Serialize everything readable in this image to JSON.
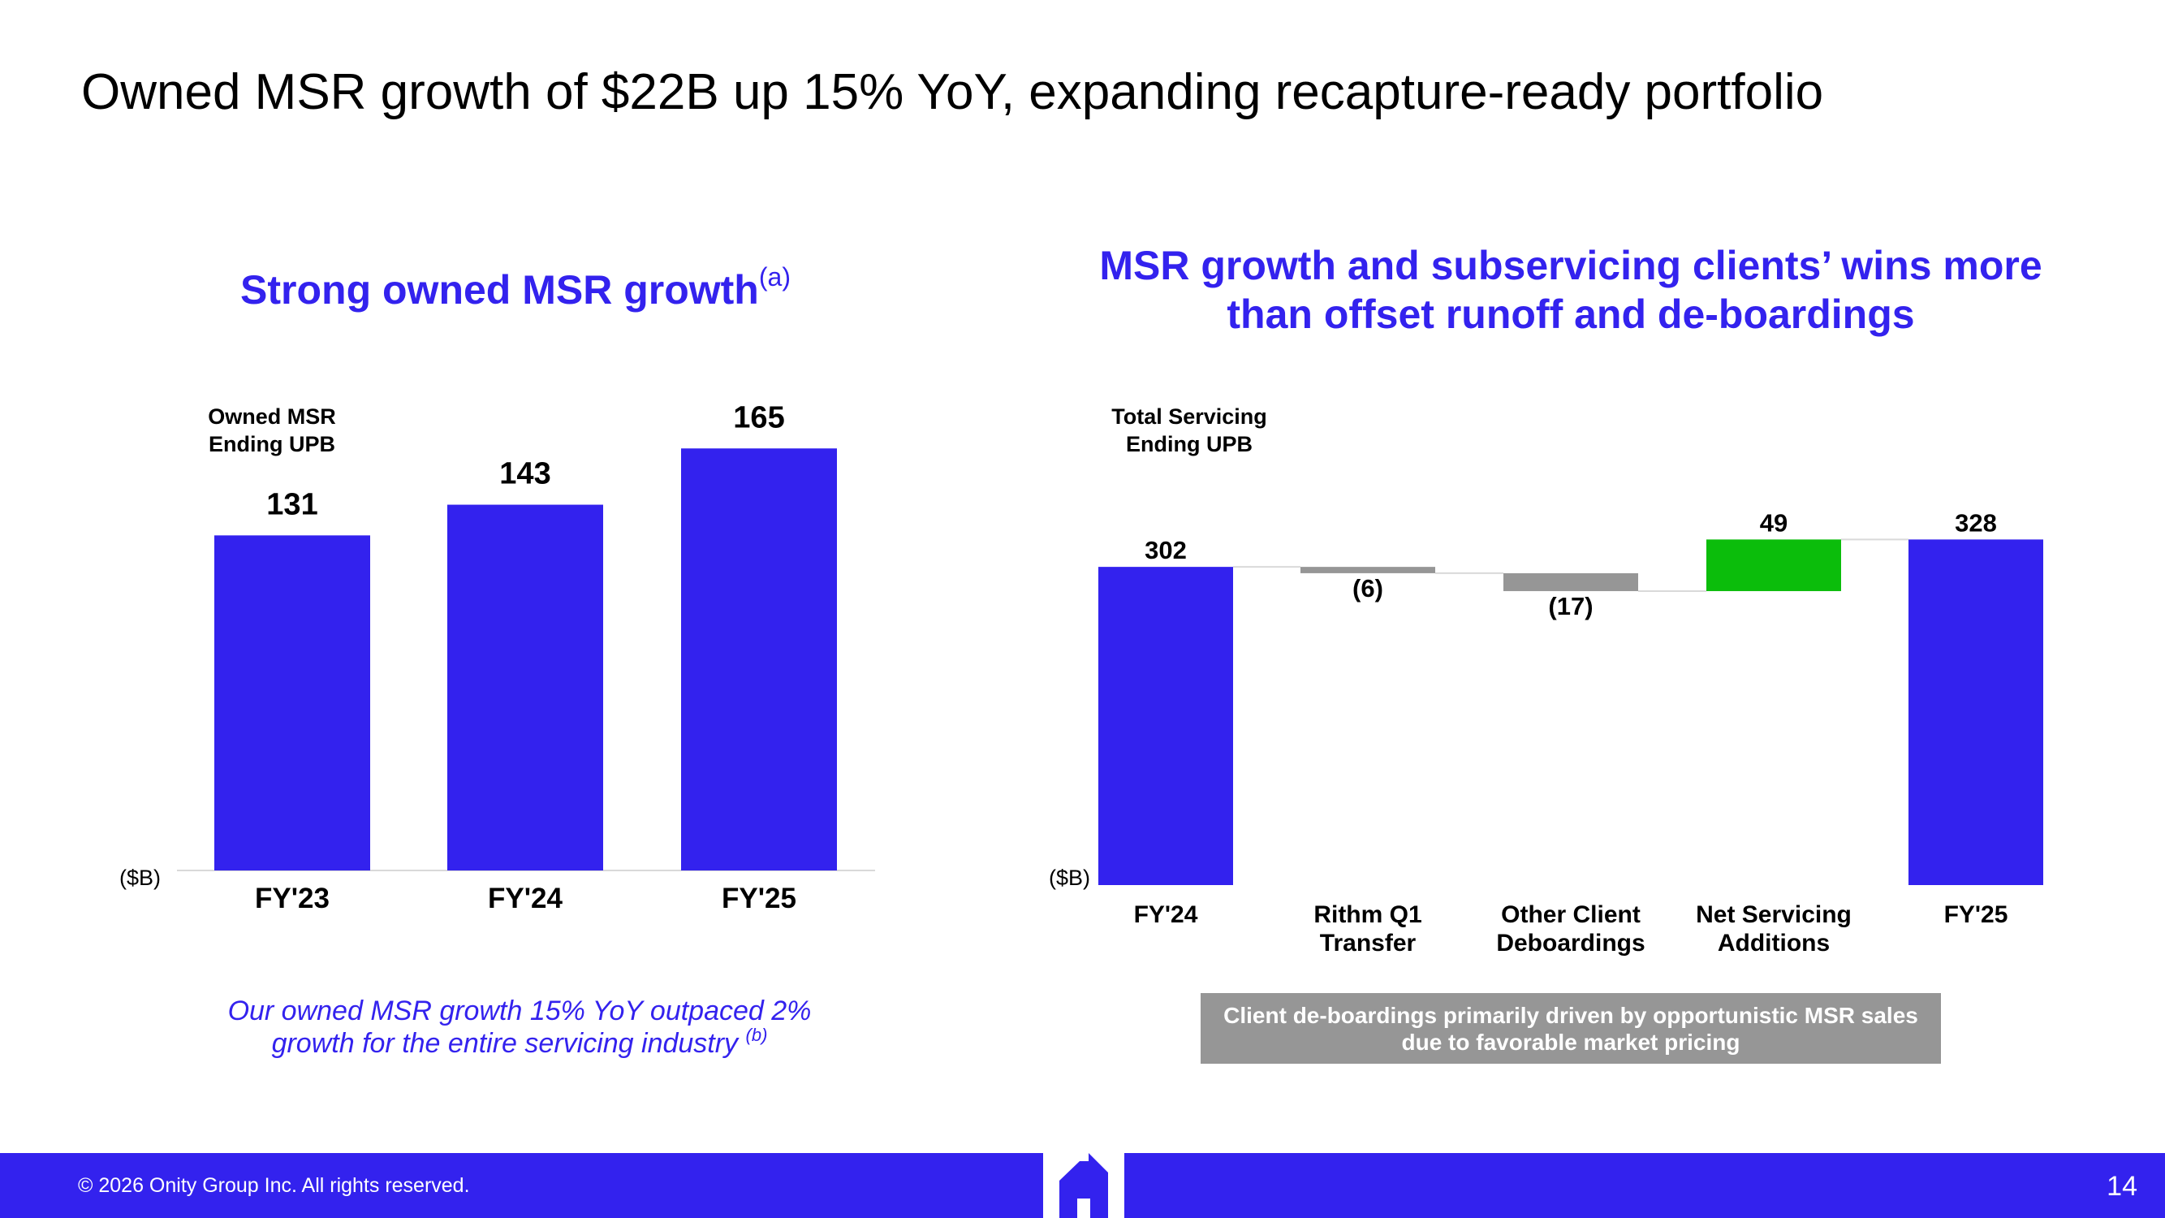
{
  "slide": {
    "title": "Owned MSR growth of $22B up 15% YoY, expanding recapture-ready portfolio",
    "page_number": "14",
    "copyright": "© 2026 Onity Group Inc. All rights reserved."
  },
  "left_panel": {
    "title": "Strong owned MSR growth",
    "title_sup": "(a)",
    "note": "Our owned MSR growth 15% YoY outpaced 2% growth for the entire servicing industry",
    "note_sup": "(b)"
  },
  "right_panel": {
    "title_line1": "MSR growth and subservicing clients’ wins more",
    "title_line2": "than offset runoff and de-boardings",
    "callout_line1": "Client de-boardings primarily driven by opportunistic MSR sales",
    "callout_line2": "due to favorable market pricing"
  },
  "colors": {
    "brand_blue": "#3322ee",
    "negative_gray": "#969696",
    "positive_green": "#0bbd0b"
  },
  "chart_data": [
    {
      "type": "bar",
      "categories": [
        "FY'23",
        "FY'24",
        "FY'25"
      ],
      "values": [
        131,
        143,
        165
      ],
      "value_labels": [
        "131",
        "143",
        "165"
      ],
      "series_label": [
        "Owned MSR",
        "Ending UPB"
      ],
      "unit_label": "($B)",
      "ylim": [
        0,
        165
      ]
    },
    {
      "type": "bar",
      "subtype": "waterfall",
      "categories": [
        [
          "FY'24"
        ],
        [
          "Rithm Q1",
          "Transfer"
        ],
        [
          "Other Client",
          "Deboardings"
        ],
        [
          "Net Servicing",
          "Additions"
        ],
        [
          "FY'25"
        ]
      ],
      "values": [
        302,
        -6,
        -17,
        49,
        328
      ],
      "kinds": [
        "total",
        "delta",
        "delta",
        "delta",
        "total"
      ],
      "value_labels": [
        "302",
        "(6)",
        "(17)",
        "49",
        "328"
      ],
      "series_label": [
        "Total Servicing",
        "Ending UPB"
      ],
      "unit_label": "($B)"
    }
  ]
}
